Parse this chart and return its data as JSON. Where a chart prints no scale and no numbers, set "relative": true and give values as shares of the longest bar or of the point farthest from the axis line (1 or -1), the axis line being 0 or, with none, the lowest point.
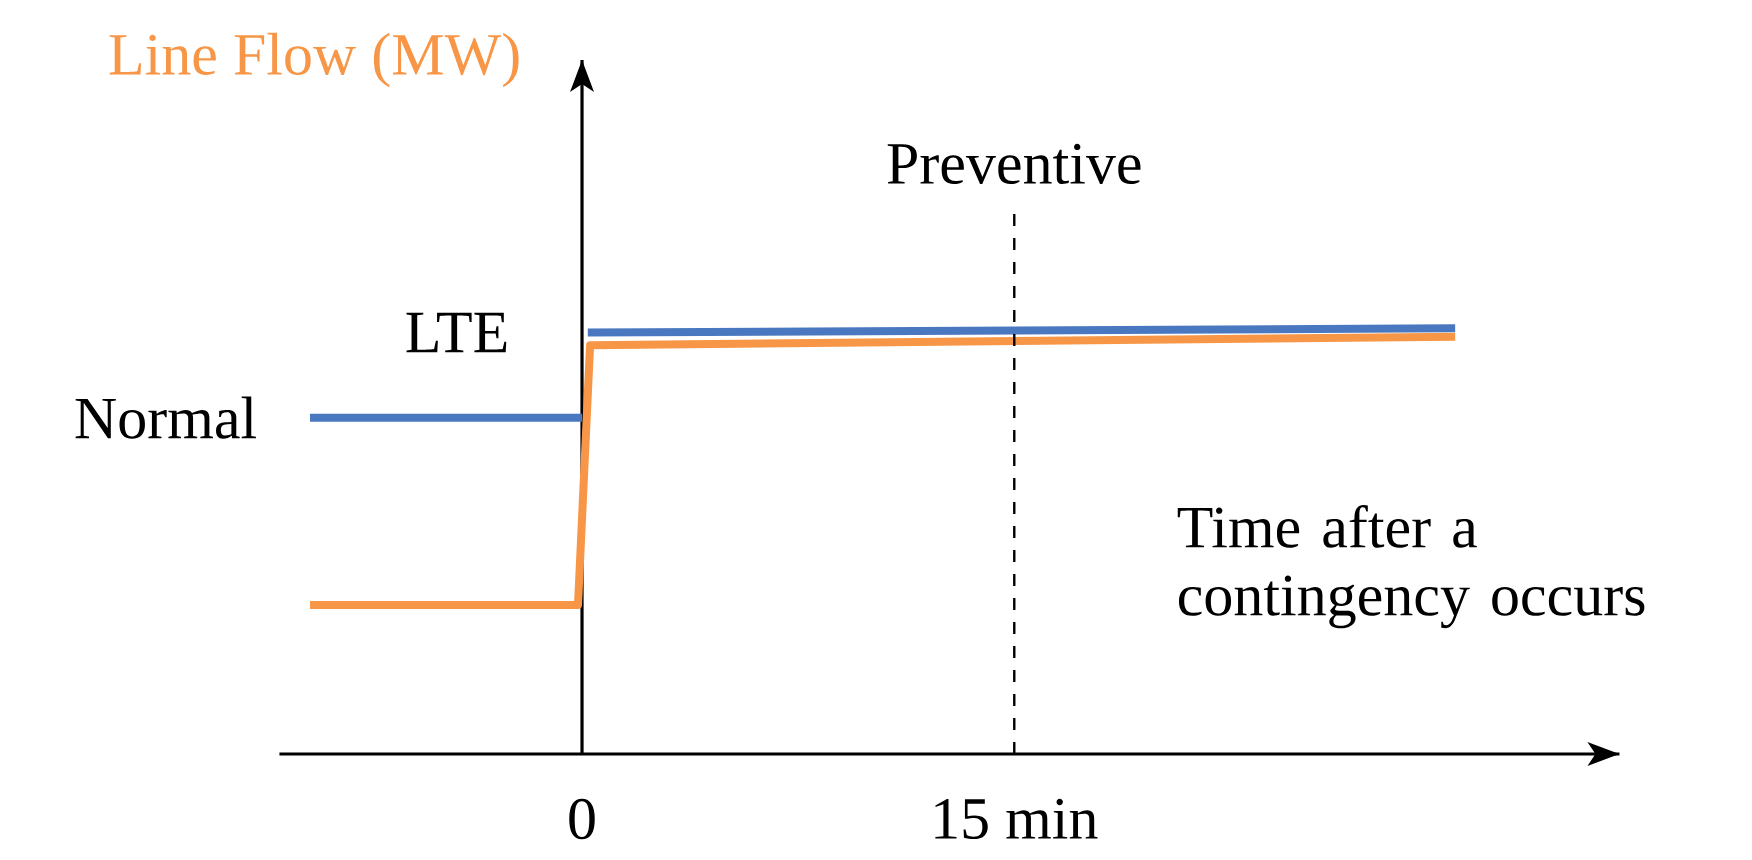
{
  "chart_data": {
    "type": "line",
    "relative": true,
    "ylabel": "Line Flow (MW)",
    "xlabel": "Time after a contingency occurs",
    "xlim": [
      -10.5,
      36
    ],
    "xticks": [
      0,
      {
        "value": 15,
        "label": "15 min"
      }
    ],
    "series": [
      {
        "color": "#4a78c0",
        "x": [
          -9.44,
          0,
          null,
          0.2,
          30.3
        ],
        "values": [
          0.79,
          0.79,
          null,
          0.99,
          1.0
        ]
      },
      {
        "color": "#f79646",
        "x": [
          -9.44,
          -0.14,
          0.28,
          30.3
        ],
        "values": [
          0.35,
          0.35,
          0.96,
          0.98
        ]
      }
    ],
    "ref_lines": [
      {
        "axis": "x",
        "value": 15,
        "label": "Preventive",
        "line_style": "dashed",
        "color": "#000000"
      }
    ],
    "annotations": [
      {
        "text": "Normal",
        "x": -9.44,
        "y": 0.79
      },
      {
        "text": "LTE",
        "x": 0,
        "y": 0.99
      }
    ]
  }
}
